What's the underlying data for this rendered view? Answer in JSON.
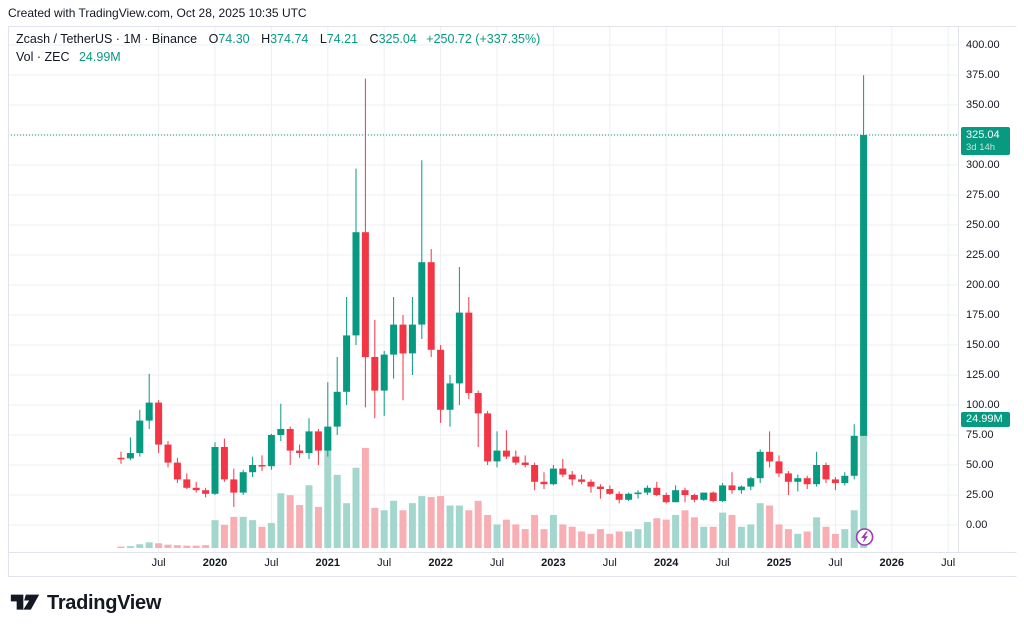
{
  "header": {
    "credit": "Created with TradingView.com, Oct 28, 2025 10:35 UTC"
  },
  "legend": {
    "symbol_text": "Zcash / TetherUS · 1M · Binance",
    "ohlc": [
      {
        "label": "O",
        "value": "74.30"
      },
      {
        "label": "H",
        "value": "374.74"
      },
      {
        "label": "L",
        "value": "74.21"
      },
      {
        "label": "C",
        "value": "325.04"
      }
    ],
    "change": "+250.72 (+337.35%)",
    "vol_label": "Vol · ZEC",
    "vol_value": "24.99M"
  },
  "price_axis": {
    "ticks": [
      "400.00",
      "375.00",
      "350.00",
      "300.00",
      "275.00",
      "250.00",
      "225.00",
      "200.00",
      "175.00",
      "150.00",
      "125.00",
      "100.00",
      "75.00",
      "50.00",
      "25.00",
      "0.00"
    ],
    "price_label": {
      "price": "325.04",
      "countdown": "3d 14h"
    },
    "volume_label": "24.99M"
  },
  "time_axis": {
    "ticks": [
      {
        "label": "Jul",
        "m": -6,
        "major": false
      },
      {
        "label": "2020",
        "m": 0,
        "major": true
      },
      {
        "label": "Jul",
        "m": 6,
        "major": false
      },
      {
        "label": "2021",
        "m": 12,
        "major": true
      },
      {
        "label": "Jul",
        "m": 18,
        "major": false
      },
      {
        "label": "2022",
        "m": 24,
        "major": true
      },
      {
        "label": "Jul",
        "m": 30,
        "major": false
      },
      {
        "label": "2023",
        "m": 36,
        "major": true
      },
      {
        "label": "Jul",
        "m": 42,
        "major": false
      },
      {
        "label": "2024",
        "m": 48,
        "major": true
      },
      {
        "label": "Jul",
        "m": 54,
        "major": false
      },
      {
        "label": "2025",
        "m": 60,
        "major": true
      },
      {
        "label": "Jul",
        "m": 66,
        "major": false
      },
      {
        "label": "2026",
        "m": 72,
        "major": true
      },
      {
        "label": "Jul",
        "m": 78,
        "major": false
      }
    ]
  },
  "chart_data": {
    "type": "candlestick_with_volume",
    "title": "Zcash / TetherUS",
    "exchange": "Binance",
    "interval": "1M",
    "ylim": [
      0,
      400
    ],
    "price_grid_step": 25,
    "grid": true,
    "current_price": 325.04,
    "countdown": "3d 14h",
    "volume_unit": "M",
    "last_volume_m": 24.99,
    "start_month": "2019-03",
    "columns": [
      "open",
      "high",
      "low",
      "close",
      "volume_m"
    ],
    "candles": [
      [
        56,
        61,
        51,
        55.5,
        0.3
      ],
      [
        55.5,
        73,
        54,
        60,
        0.4
      ],
      [
        60,
        96,
        57,
        87,
        0.8
      ],
      [
        87,
        126,
        80,
        102,
        1.2
      ],
      [
        102,
        104,
        60,
        67,
        1.0
      ],
      [
        67,
        70,
        48,
        52,
        0.7
      ],
      [
        52,
        56,
        35,
        38,
        0.6
      ],
      [
        38,
        43,
        30,
        31,
        0.5
      ],
      [
        31,
        36,
        27,
        29,
        0.5
      ],
      [
        29,
        31,
        23,
        26,
        0.6
      ],
      [
        26,
        69,
        25,
        65,
        5.9
      ],
      [
        65,
        72,
        36,
        38,
        4.9
      ],
      [
        38,
        47,
        15,
        27,
        6.6
      ],
      [
        27,
        46,
        25,
        44,
        6.6
      ],
      [
        44,
        57,
        40,
        50,
        5.9
      ],
      [
        50,
        58,
        45,
        49,
        4.5
      ],
      [
        49,
        76,
        46,
        75,
        5.3
      ],
      [
        75,
        101,
        70,
        80,
        11.6
      ],
      [
        80,
        82,
        50,
        62,
        11.2
      ],
      [
        62,
        67,
        56,
        60,
        9.1
      ],
      [
        60,
        89,
        55,
        78,
        13.3
      ],
      [
        78,
        80,
        50,
        62,
        8.7
      ],
      [
        62,
        119,
        57,
        82,
        25.4
      ],
      [
        82,
        140,
        75,
        111,
        15.5
      ],
      [
        111,
        190,
        100,
        158,
        9.5
      ],
      [
        158,
        297,
        150,
        244,
        17.0
      ],
      [
        244,
        372,
        98,
        140,
        21.2
      ],
      [
        140,
        171,
        89,
        112,
        8.5
      ],
      [
        112,
        145,
        91,
        142,
        8.0
      ],
      [
        142,
        190,
        122,
        167,
        10.0
      ],
      [
        167,
        175,
        104,
        143,
        8.0
      ],
      [
        143,
        190,
        125,
        167,
        9.5
      ],
      [
        167,
        304,
        155,
        219,
        11.0
      ],
      [
        219,
        230,
        140,
        146,
        10.8
      ],
      [
        146,
        150,
        85,
        96,
        11.0
      ],
      [
        96,
        125,
        82,
        118,
        9.0
      ],
      [
        118,
        215,
        100,
        177,
        9.0
      ],
      [
        177,
        190,
        105,
        110,
        8.0
      ],
      [
        110,
        112,
        65,
        93,
        10.0
      ],
      [
        93,
        95,
        50,
        53,
        7.0
      ],
      [
        53,
        78,
        48,
        62,
        5.0
      ],
      [
        62,
        79,
        55,
        57,
        6.0
      ],
      [
        57,
        62,
        50,
        52,
        5.0
      ],
      [
        52,
        58,
        48,
        50,
        4.0
      ],
      [
        50,
        52,
        29,
        36,
        7.0
      ],
      [
        36,
        44,
        30,
        34,
        4.0
      ],
      [
        34,
        50,
        33,
        47,
        7.0
      ],
      [
        47,
        55,
        40,
        42,
        5.0
      ],
      [
        42,
        45,
        33,
        38,
        4.5
      ],
      [
        38,
        42,
        34,
        36,
        3.5
      ],
      [
        36,
        38,
        27,
        32,
        3.0
      ],
      [
        32,
        34,
        22,
        30,
        4.0
      ],
      [
        30,
        33,
        25,
        26,
        3.0
      ],
      [
        26,
        28,
        18,
        21,
        3.5
      ],
      [
        21,
        27,
        20,
        26,
        3.5
      ],
      [
        26,
        29,
        22,
        27,
        4.0
      ],
      [
        27,
        33,
        25,
        31,
        5.5
      ],
      [
        31,
        36,
        24,
        25,
        6.3
      ],
      [
        25,
        27,
        18,
        19,
        6.0
      ],
      [
        19,
        33,
        19,
        29,
        7.0
      ],
      [
        29,
        31,
        19,
        25,
        8.0
      ],
      [
        25,
        26,
        19,
        21,
        6.5
      ],
      [
        21,
        27,
        20,
        27,
        4.5
      ],
      [
        27,
        28,
        19,
        20,
        4.5
      ],
      [
        20,
        35,
        19,
        33,
        7.5
      ],
      [
        33,
        44,
        26,
        29,
        7.0
      ],
      [
        29,
        33,
        26,
        32,
        4.5
      ],
      [
        32,
        40,
        29,
        39,
        5.0
      ],
      [
        39,
        63,
        35,
        61,
        9.5
      ],
      [
        61,
        78,
        48,
        53,
        9.0
      ],
      [
        53,
        58,
        40,
        43,
        5.0
      ],
      [
        43,
        45,
        25,
        36,
        4.0
      ],
      [
        36,
        42,
        28,
        39,
        3.0
      ],
      [
        39,
        41,
        30,
        34,
        3.5
      ],
      [
        34,
        61,
        32,
        50,
        6.5
      ],
      [
        50,
        52,
        35,
        38,
        4.5
      ],
      [
        38,
        40,
        29,
        35,
        3.0
      ],
      [
        35,
        44,
        33,
        41,
        4.0
      ],
      [
        41,
        84,
        38,
        74.3,
        8.0
      ],
      [
        74.3,
        374.74,
        74.21,
        325.04,
        24.99
      ]
    ],
    "colors": {
      "up": "#089981",
      "down": "#F23645",
      "vol_up": "#A3D7CD",
      "vol_down": "#F7AFB3",
      "price_line": "#089981",
      "marker": "#9C3BB5"
    },
    "marker": {
      "type": "lightning",
      "candle_index": 79
    }
  },
  "footer": {
    "brand": "TradingView"
  }
}
